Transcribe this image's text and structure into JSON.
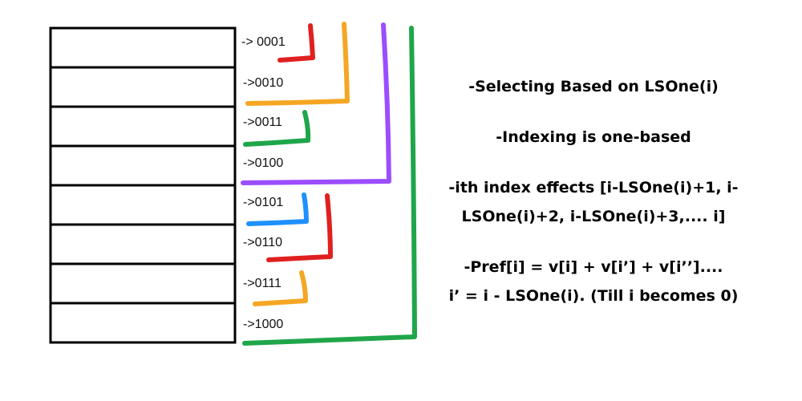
{
  "array": {
    "labels": [
      "-> 0001",
      "->0010",
      "->0011",
      "->0100",
      "->0101",
      "->0110",
      "->0111",
      "->1000"
    ]
  },
  "brackets": [
    {
      "covers": "1",
      "color": "#e02020"
    },
    {
      "covers": "1-2",
      "color": "#f5a623"
    },
    {
      "covers": "3",
      "color": "#1fa64a"
    },
    {
      "covers": "1-4",
      "color": "#9b4dff"
    },
    {
      "covers": "5",
      "color": "#1e90ff"
    },
    {
      "covers": "5-6",
      "color": "#e02020"
    },
    {
      "covers": "7",
      "color": "#f5a623"
    },
    {
      "covers": "1-8",
      "color": "#1fa64a"
    }
  ],
  "notes": {
    "selecting": "-Selecting Based on LSOne(i)",
    "indexing": "-Indexing is one-based",
    "effects_line1": "-ith index effects [i-LSOne(i)+1, i-",
    "effects_line2": "LSOne(i)+2, i-LSOne(i)+3,.... i]",
    "pref_line1": "-Pref[i] = v[i] + v[i’] + v[i’’]....",
    "pref_line2": "i’ = i - LSOne(i). (Till i becomes 0)"
  }
}
